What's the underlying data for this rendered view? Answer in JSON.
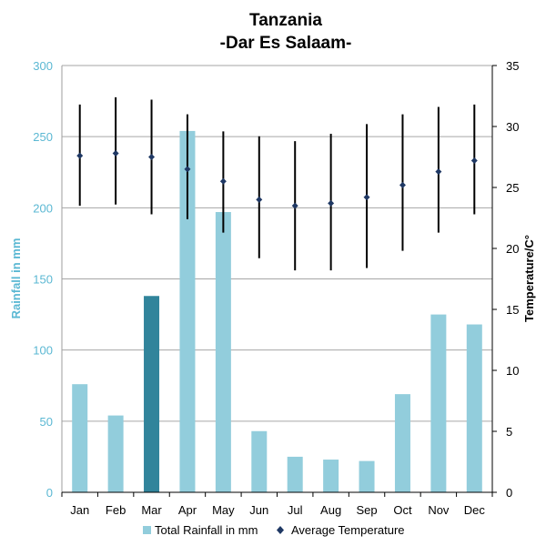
{
  "chart_data": {
    "type": "bar",
    "title": "Tanzania",
    "subtitle": "-Dar Es Salaam-",
    "categories": [
      "Jan",
      "Feb",
      "Mar",
      "Apr",
      "May",
      "Jun",
      "Jul",
      "Aug",
      "Sep",
      "Oct",
      "Nov",
      "Dec"
    ],
    "ylabel": "Rainfall in mm",
    "y2label": "Temperature/C°",
    "ylim": [
      0,
      300
    ],
    "y2lim": [
      0,
      35
    ],
    "yticks": [
      "0",
      "50",
      "100",
      "150",
      "200",
      "250",
      "300"
    ],
    "y2ticks": [
      "0",
      "5",
      "10",
      "15",
      "20",
      "25",
      "30",
      "35"
    ],
    "grid": true,
    "legend_position": "bottom",
    "series": [
      {
        "name": "Total Rainfall in mm",
        "kind": "bar",
        "color": "#92cddc",
        "highlight_color": "#31849b",
        "highlight_index": 2,
        "values": [
          76,
          54,
          138,
          254,
          197,
          43,
          25,
          23,
          22,
          69,
          125,
          118
        ]
      },
      {
        "name": "Average Temperature",
        "kind": "point-with-range",
        "color": "#1f3864",
        "values": [
          27.6,
          27.8,
          27.5,
          26.5,
          25.5,
          24.0,
          23.5,
          23.7,
          24.2,
          25.2,
          26.3,
          27.2
        ],
        "min": [
          23.5,
          23.6,
          22.8,
          22.4,
          21.3,
          19.2,
          18.2,
          18.2,
          18.4,
          19.8,
          21.3,
          22.8
        ],
        "max": [
          31.8,
          32.4,
          32.2,
          31.0,
          29.6,
          29.2,
          28.8,
          29.4,
          30.2,
          31.0,
          31.6,
          31.8
        ]
      }
    ]
  }
}
